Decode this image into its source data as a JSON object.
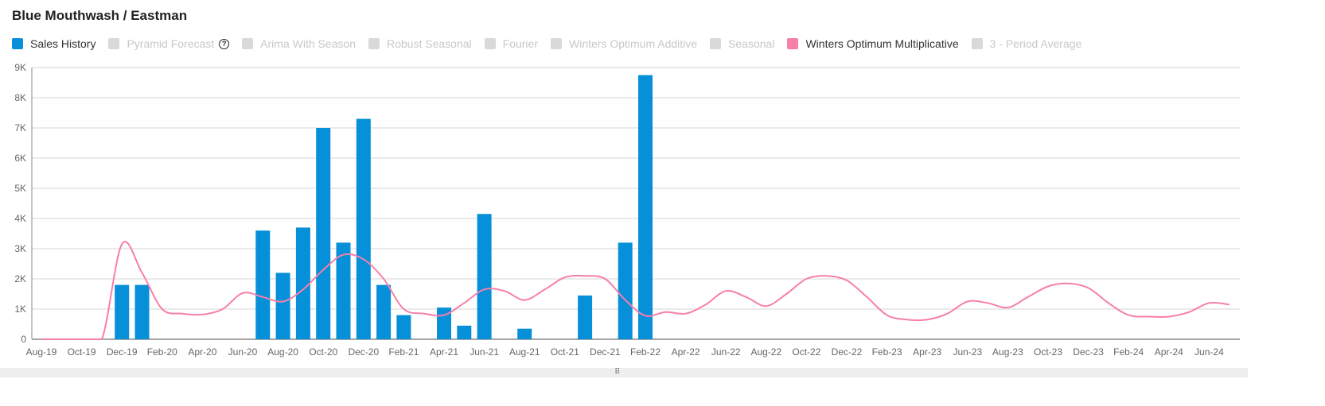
{
  "title": "Blue Mouthwash / Eastman",
  "legend": [
    {
      "label": "Sales History",
      "color": "#0590d9",
      "active": true
    },
    {
      "label": "Pyramid Forecast",
      "color": "#d9d9d9",
      "active": false,
      "help_icon": "?"
    },
    {
      "label": "Arima With Season",
      "color": "#d9d9d9",
      "active": false
    },
    {
      "label": "Robust Seasonal",
      "color": "#d9d9d9",
      "active": false
    },
    {
      "label": "Fourier",
      "color": "#d9d9d9",
      "active": false
    },
    {
      "label": "Winters Optimum Additive",
      "color": "#d9d9d9",
      "active": false
    },
    {
      "label": "Seasonal",
      "color": "#d9d9d9",
      "active": false
    },
    {
      "label": "Winters Optimum Multiplicative",
      "color": "#f77fa8",
      "active": true
    },
    {
      "label": "3 - Period Average",
      "color": "#d9d9d9",
      "active": false
    }
  ],
  "chart_data": {
    "type": "bar",
    "title": "Blue Mouthwash / Eastman",
    "xlabel": "",
    "ylabel": "",
    "ylim": [
      0,
      9000
    ],
    "yticks": [
      "0",
      "1K",
      "2K",
      "3K",
      "4K",
      "5K",
      "6K",
      "7K",
      "8K",
      "9K"
    ],
    "grid": true,
    "months": [
      "Aug-19",
      "Sep-19",
      "Oct-19",
      "Nov-19",
      "Dec-19",
      "Jan-20",
      "Feb-20",
      "Mar-20",
      "Apr-20",
      "May-20",
      "Jun-20",
      "Jul-20",
      "Aug-20",
      "Sep-20",
      "Oct-20",
      "Nov-20",
      "Dec-20",
      "Jan-21",
      "Feb-21",
      "Mar-21",
      "Apr-21",
      "May-21",
      "Jun-21",
      "Jul-21",
      "Aug-21",
      "Sep-21",
      "Oct-21",
      "Nov-21",
      "Dec-21",
      "Jan-22",
      "Feb-22",
      "Mar-22",
      "Apr-22",
      "May-22",
      "Jun-22",
      "Jul-22",
      "Aug-22",
      "Sep-22",
      "Oct-22",
      "Nov-22",
      "Dec-22",
      "Jan-23",
      "Feb-23",
      "Mar-23",
      "Apr-23",
      "May-23",
      "Jun-23",
      "Jul-23",
      "Aug-23",
      "Sep-23",
      "Oct-23",
      "Nov-23",
      "Dec-23",
      "Jan-24",
      "Feb-24",
      "Mar-24",
      "Apr-24",
      "May-24",
      "Jun-24",
      "Jul-24"
    ],
    "xtick_labels": [
      "Aug-19",
      "Oct-19",
      "Dec-19",
      "Feb-20",
      "Apr-20",
      "Jun-20",
      "Aug-20",
      "Oct-20",
      "Dec-20",
      "Feb-21",
      "Apr-21",
      "Jun-21",
      "Aug-21",
      "Oct-21",
      "Dec-21",
      "Feb-22",
      "Apr-22",
      "Jun-22",
      "Aug-22",
      "Oct-22",
      "Dec-22",
      "Feb-23",
      "Apr-23",
      "Jun-23",
      "Aug-23",
      "Oct-23",
      "Dec-23",
      "Feb-24",
      "Apr-24",
      "Jun-24"
    ],
    "series": [
      {
        "name": "Sales History",
        "type": "bar",
        "color": "#0590d9",
        "values": [
          0,
          0,
          0,
          0,
          1800,
          1800,
          0,
          0,
          0,
          0,
          0,
          3600,
          2200,
          3700,
          7000,
          3200,
          7300,
          1800,
          800,
          0,
          1050,
          450,
          4150,
          0,
          350,
          0,
          0,
          1450,
          0,
          3200,
          8750,
          null,
          null,
          null,
          null,
          null,
          null,
          null,
          null,
          null,
          null,
          null,
          null,
          null,
          null,
          null,
          null,
          null,
          null,
          null,
          null,
          null,
          null,
          null,
          null,
          null,
          null,
          null,
          null,
          null
        ]
      },
      {
        "name": "Winters Optimum Multiplicative",
        "type": "line",
        "color": "#f77fa8",
        "values": [
          0,
          0,
          0,
          0,
          3150,
          2200,
          1000,
          850,
          820,
          1000,
          1530,
          1400,
          1250,
          1650,
          2300,
          2800,
          2650,
          2000,
          1000,
          850,
          800,
          1200,
          1650,
          1600,
          1300,
          1650,
          2050,
          2100,
          2000,
          1300,
          780,
          900,
          850,
          1150,
          1600,
          1400,
          1100,
          1500,
          2000,
          2100,
          1950,
          1400,
          800,
          650,
          650,
          850,
          1250,
          1200,
          1050,
          1400,
          1750,
          1850,
          1700,
          1200,
          800,
          750,
          750,
          900,
          1200,
          1150
        ]
      }
    ]
  },
  "footer": {
    "handle_icon": "drag-handle"
  }
}
